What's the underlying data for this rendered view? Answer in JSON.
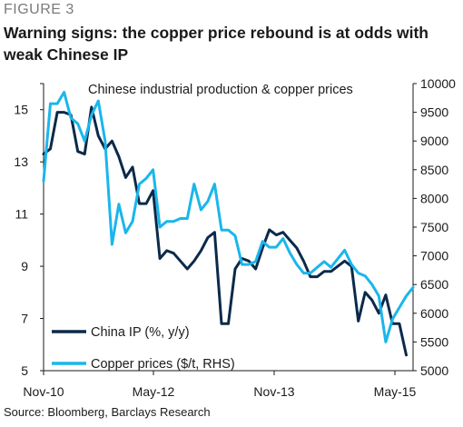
{
  "figure_label": "FIGURE 3",
  "title": "Warning signs: the copper price rebound is at odds with weak Chinese IP",
  "source": "Source:  Bloomberg, Barclays Research",
  "chart_data": {
    "type": "line",
    "title": "Chinese industrial production & copper prices",
    "x_tick_labels": [
      "Nov-10",
      "May-12",
      "Nov-13",
      "May-15"
    ],
    "x": [
      "Nov-10",
      "Dec-10",
      "Jan-11",
      "Feb-11",
      "Mar-11",
      "Apr-11",
      "May-11",
      "Jun-11",
      "Jul-11",
      "Aug-11",
      "Sep-11",
      "Oct-11",
      "Nov-11",
      "Dec-11",
      "Jan-12",
      "Feb-12",
      "Mar-12",
      "Apr-12",
      "May-12",
      "Jun-12",
      "Jul-12",
      "Aug-12",
      "Sep-12",
      "Oct-12",
      "Nov-12",
      "Dec-12",
      "Jan-13",
      "Feb-13",
      "Mar-13",
      "Apr-13",
      "May-13",
      "Jun-13",
      "Jul-13",
      "Aug-13",
      "Sep-13",
      "Oct-13",
      "Nov-13",
      "Dec-13",
      "Jan-14",
      "Feb-14",
      "Mar-14",
      "Apr-14",
      "May-14",
      "Jun-14",
      "Jul-14",
      "Aug-14",
      "Sep-14",
      "Oct-14",
      "Nov-14",
      "Dec-14",
      "Jan-15",
      "Feb-15",
      "Mar-15",
      "Apr-15",
      "May-15"
    ],
    "y_left": {
      "ticks": [
        5,
        7,
        9,
        11,
        13,
        15
      ],
      "range": [
        5,
        16
      ]
    },
    "y_right": {
      "ticks": [
        5000,
        5500,
        6000,
        6500,
        7000,
        7500,
        8000,
        8500,
        9000,
        9500,
        10000
      ],
      "range": [
        5000,
        10000
      ]
    },
    "series": [
      {
        "name": "China IP (%, y/y)",
        "axis": "left",
        "color": "#0b2a4a",
        "values": [
          13.3,
          13.5,
          14.9,
          14.9,
          14.8,
          13.4,
          13.3,
          15.1,
          14.0,
          13.5,
          13.8,
          13.2,
          12.4,
          12.8,
          11.4,
          11.4,
          11.9,
          9.3,
          9.6,
          9.5,
          9.2,
          8.9,
          9.2,
          9.6,
          10.1,
          10.3,
          6.8,
          6.8,
          8.9,
          9.3,
          9.2,
          8.9,
          9.7,
          10.4,
          10.2,
          10.3,
          10.0,
          9.7,
          9.2,
          8.6,
          8.6,
          8.8,
          8.8,
          9.0,
          9.2,
          9.0,
          6.9,
          8.0,
          7.7,
          7.2,
          7.9,
          6.8,
          6.8,
          5.6,
          null
        ]
      },
      {
        "name": "Copper prices ($/t, RHS)",
        "axis": "right",
        "color": "#1ab6ec",
        "values": [
          8300,
          9650,
          9650,
          9850,
          9400,
          9300,
          9000,
          9450,
          9700,
          9000,
          7200,
          7900,
          7400,
          7600,
          8250,
          8350,
          8500,
          7500,
          7600,
          7600,
          7650,
          7650,
          8250,
          7800,
          7950,
          8250,
          7450,
          7450,
          7350,
          6850,
          6850,
          6900,
          7250,
          7150,
          7150,
          7300,
          7050,
          6850,
          6700,
          6700,
          6800,
          6900,
          6800,
          6950,
          7100,
          6850,
          6700,
          6650,
          6500,
          6300,
          5500,
          5900,
          6100,
          6300,
          6450
        ]
      }
    ],
    "grid": false,
    "legend": "bottom-left"
  }
}
